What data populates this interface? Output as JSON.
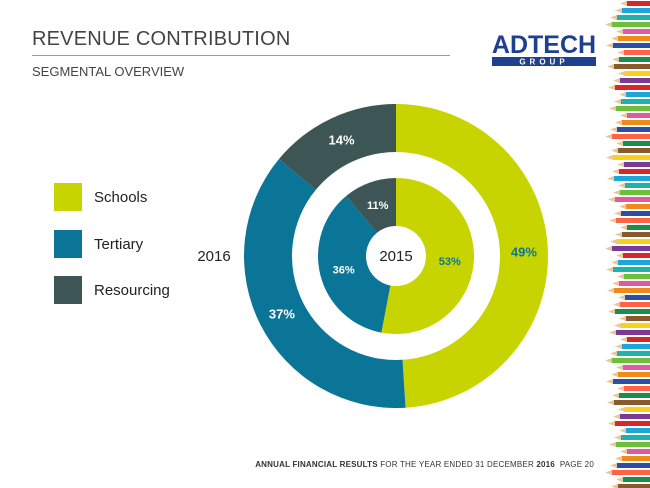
{
  "header": {
    "title": "REVENUE CONTRIBUTION",
    "subtitle": "SEGMENTAL OVERVIEW"
  },
  "logo": {
    "main_text": "ADTECH",
    "sub_text": "GROUP"
  },
  "legend": [
    {
      "label": "Schools",
      "color": "#c8d400"
    },
    {
      "label": "Tertiary",
      "color": "#0b7598"
    },
    {
      "label": "Resourcing",
      "color": "#3e5555"
    }
  ],
  "chart_data": {
    "type": "pie",
    "subtype": "nested-donut",
    "title": "",
    "categories": [
      "Schools",
      "Tertiary",
      "Resourcing"
    ],
    "colors": [
      "#c8d400",
      "#0b7598",
      "#3e5555"
    ],
    "series": [
      {
        "name": "2016",
        "ring": "outer",
        "values": [
          49,
          37,
          14
        ],
        "labels": [
          "49%",
          "37%",
          "14%"
        ]
      },
      {
        "name": "2015",
        "ring": "inner",
        "values": [
          53,
          36,
          11
        ],
        "labels": [
          "53%",
          "36%",
          "11%"
        ]
      }
    ],
    "legend_position": "left"
  },
  "footer": {
    "bold_prefix": "ANNUAL FINANCIAL RESULTS",
    "middle": " FOR THE YEAR ENDED 31 DECEMBER ",
    "year": "2016",
    "page": "PAGE 20"
  }
}
